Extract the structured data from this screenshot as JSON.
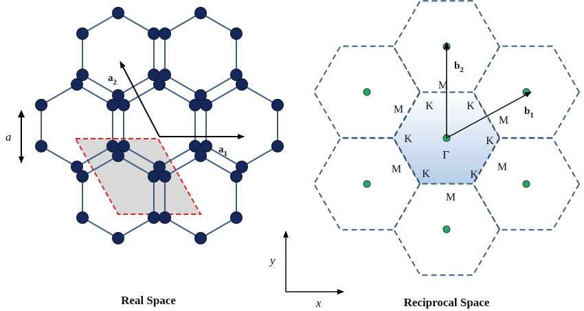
{
  "real_space": {
    "caption": "Real Space",
    "vector_a1": {
      "main": "a",
      "sub": "1"
    },
    "vector_a2": {
      "main": "a",
      "sub": "2"
    },
    "lattice_constant": "a"
  },
  "reciprocal_space": {
    "caption": "Reciprocal Space",
    "vector_b1": {
      "main": "b",
      "sub": "1"
    },
    "vector_b2": {
      "main": "b",
      "sub": "2"
    },
    "gamma": "Γ",
    "k_point": "K",
    "m_point": "M"
  },
  "axes": {
    "x": "x",
    "y": "y"
  },
  "colors": {
    "bond": "#3a5a80",
    "atom_fill": "#16285a",
    "atom_stroke": "#0a1230",
    "unit_cell_border": "#e02020",
    "unit_cell_fill": "#d9d9d9",
    "zone_border": "#2d4e78",
    "zone_fill_top": "#ffffff",
    "zone_fill_bottom": "#b5cde8",
    "reciprocal_point_fill": "#2aa86a",
    "reciprocal_point_stroke": "#1c3a2a",
    "arrow": "#000000"
  }
}
